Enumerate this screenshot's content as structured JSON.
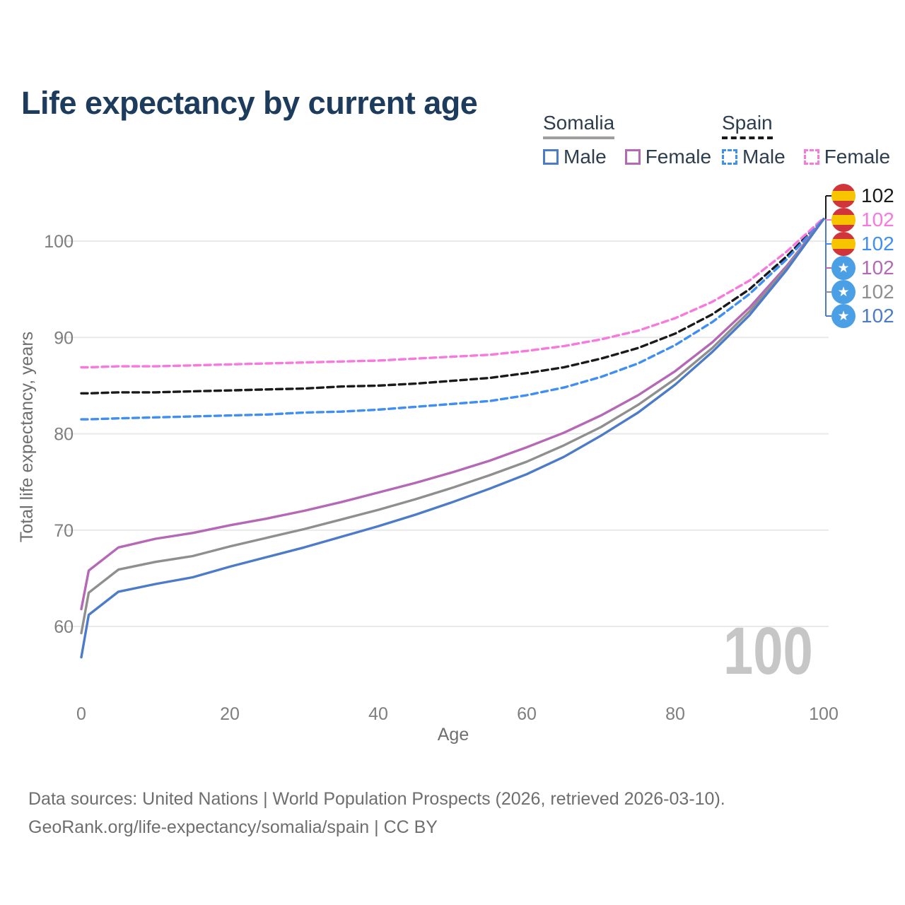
{
  "title": "Life expectancy by current age",
  "current_age_indicator": "100",
  "legend": {
    "somalia": {
      "label": "Somalia",
      "male_label": "Male",
      "female_label": "Female",
      "underline_color": "#9e9e9e",
      "underline_style": "solid"
    },
    "spain": {
      "label": "Spain",
      "male_label": "Male",
      "female_label": "Female",
      "underline_color": "#1a1a1a",
      "underline_style": "dashed"
    }
  },
  "chart_data": {
    "type": "line",
    "title": "Life expectancy by current age",
    "xlabel": "Age",
    "ylabel": "Total life expectancy, years",
    "xlim": [
      0,
      100
    ],
    "ylim": [
      56,
      103
    ],
    "xticks": [
      0,
      20,
      40,
      60,
      80,
      100
    ],
    "yticks": [
      60,
      70,
      80,
      90,
      100
    ],
    "grid": "horizontal only",
    "legend_position": "top-right",
    "x": [
      0,
      1,
      5,
      10,
      15,
      20,
      25,
      30,
      35,
      40,
      45,
      50,
      55,
      60,
      65,
      70,
      75,
      80,
      85,
      90,
      95,
      100
    ],
    "series": [
      {
        "key": "spain",
        "name": "Spain",
        "sex": "both",
        "color": "#1a1a1a",
        "dashed": true,
        "values": [
          84.2,
          84.2,
          84.3,
          84.3,
          84.4,
          84.5,
          84.6,
          84.7,
          84.9,
          85.0,
          85.2,
          85.5,
          85.8,
          86.3,
          86.9,
          87.8,
          88.9,
          90.4,
          92.4,
          95.0,
          98.4,
          102.3
        ]
      },
      {
        "key": "spain_female",
        "name": "Spain Female",
        "sex": "female",
        "color": "#f878de",
        "dashed": true,
        "values": [
          86.9,
          86.9,
          87.0,
          87.0,
          87.1,
          87.2,
          87.3,
          87.4,
          87.5,
          87.6,
          87.8,
          88.0,
          88.2,
          88.6,
          89.1,
          89.8,
          90.7,
          92.0,
          93.7,
          95.9,
          98.9,
          102.4
        ]
      },
      {
        "key": "spain_male",
        "name": "Spain Male",
        "sex": "male",
        "color": "#3f8ef3",
        "dashed": true,
        "values": [
          81.5,
          81.5,
          81.6,
          81.7,
          81.8,
          81.9,
          82.0,
          82.2,
          82.3,
          82.5,
          82.8,
          83.1,
          83.4,
          84.0,
          84.8,
          85.9,
          87.3,
          89.2,
          91.6,
          94.5,
          98.1,
          102.3
        ]
      },
      {
        "key": "somalia_female",
        "name": "Somalia Female",
        "sex": "female",
        "color": "#b468b6",
        "dashed": false,
        "values": [
          61.8,
          65.8,
          68.2,
          69.1,
          69.7,
          70.5,
          71.2,
          72.0,
          72.9,
          73.9,
          74.9,
          76.0,
          77.2,
          78.6,
          80.1,
          81.9,
          84.0,
          86.5,
          89.5,
          93.1,
          97.4,
          102.3
        ]
      },
      {
        "key": "somalia",
        "name": "Somalia",
        "sex": "both",
        "color": "#8f8f8f",
        "dashed": false,
        "values": [
          59.3,
          63.5,
          65.9,
          66.7,
          67.3,
          68.3,
          69.2,
          70.1,
          71.1,
          72.1,
          73.2,
          74.4,
          75.7,
          77.1,
          78.8,
          80.7,
          83.0,
          85.7,
          88.9,
          92.7,
          97.2,
          102.3
        ]
      },
      {
        "key": "somalia_male",
        "name": "Somalia Male",
        "sex": "male",
        "color": "#4c7bc9",
        "dashed": false,
        "values": [
          56.8,
          61.2,
          63.6,
          64.4,
          65.1,
          66.2,
          67.2,
          68.2,
          69.3,
          70.4,
          71.6,
          72.9,
          74.3,
          75.8,
          77.6,
          79.8,
          82.2,
          85.1,
          88.5,
          92.3,
          97.0,
          102.3
        ]
      }
    ]
  },
  "end_labels": [
    {
      "series": "spain",
      "flag": "spain",
      "value": "102"
    },
    {
      "series": "spain_female",
      "flag": "spain",
      "value": "102"
    },
    {
      "series": "spain_male",
      "flag": "spain",
      "value": "102"
    },
    {
      "series": "somalia_female",
      "flag": "somalia",
      "value": "102"
    },
    {
      "series": "somalia",
      "flag": "somalia",
      "value": "102"
    },
    {
      "series": "somalia_male",
      "flag": "somalia",
      "value": "102"
    }
  ],
  "flags": {
    "spain": {
      "red": "#d0353b",
      "yellow": "#f6c500"
    },
    "somalia": {
      "blue": "#4a9fe5",
      "star_icon": "★"
    }
  },
  "colors": {
    "title_text": "#1c3b5d",
    "legend_text": "#2e3e4e",
    "gridline": "#e9e9e9",
    "tick_text": "#7e7e7e",
    "axis_title_text": "#6f6f6f",
    "watermark_text": "#c6c6c6",
    "footer_text": "#6e6e6e"
  },
  "footer": {
    "line1": "Data sources: United Nations | World Population Prospects (2026, retrieved 2026-03-10).",
    "line2": "GeoRank.org/life-expectancy/somalia/spain | CC BY"
  }
}
